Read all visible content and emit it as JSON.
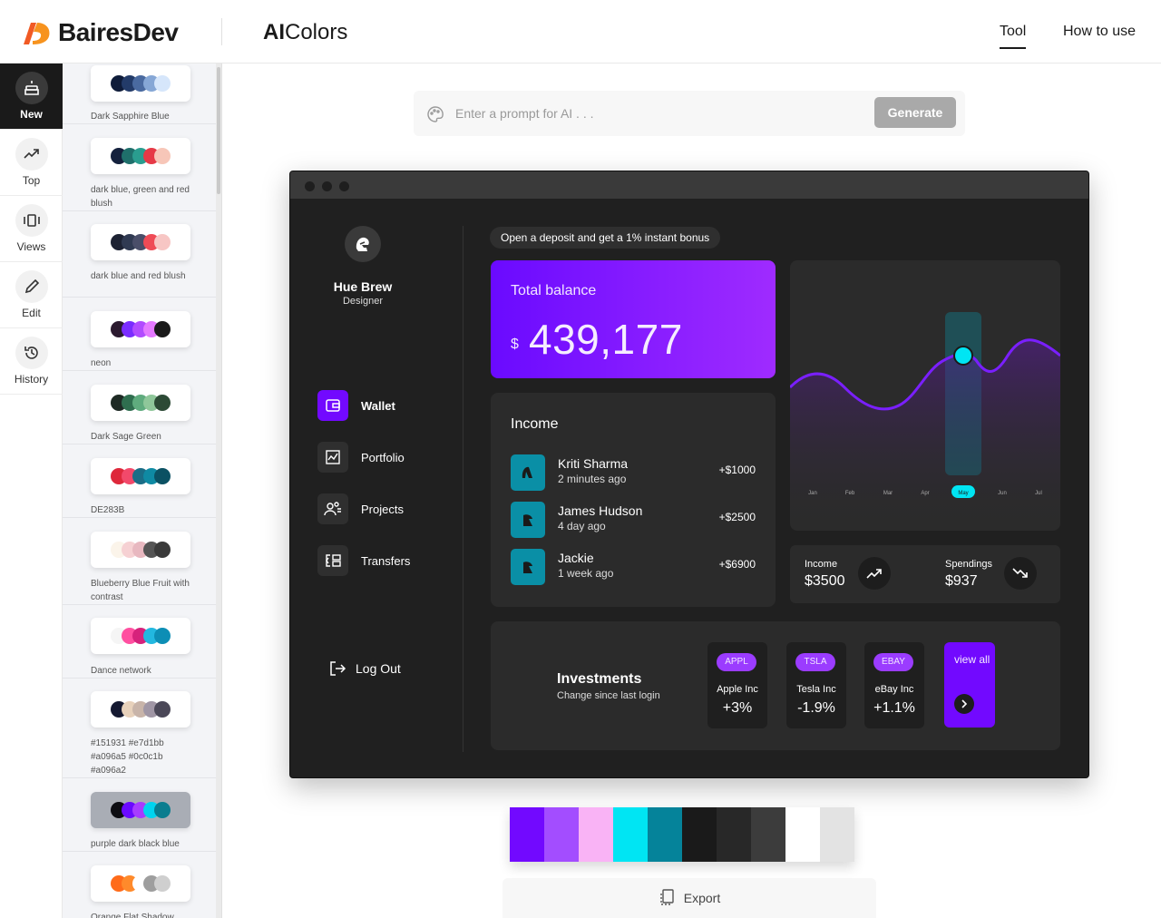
{
  "header": {
    "brand": "BairesDev",
    "app_name_bold": "AI",
    "app_name_rest": "Colors",
    "nav": [
      {
        "label": "Tool"
      },
      {
        "label": "How to use"
      }
    ]
  },
  "rail": [
    {
      "label": "New",
      "icon": "cake-icon"
    },
    {
      "label": "Top",
      "icon": "trending-up-icon"
    },
    {
      "label": "Views",
      "icon": "carousel-icon"
    },
    {
      "label": "Edit",
      "icon": "pencil-icon"
    },
    {
      "label": "History",
      "icon": "history-icon"
    }
  ],
  "palettes": [
    {
      "name": "Dark Sapphire Blue",
      "colors": [
        "#0f1c3a",
        "#233b69",
        "#4a6aa0",
        "#86a7d6",
        "#d6e6fb"
      ]
    },
    {
      "name": "dark blue, green and red blush",
      "colors": [
        "#14213d",
        "#1f6f6b",
        "#2a9d8f",
        "#e63946",
        "#f7c6b8"
      ]
    },
    {
      "name": "dark blue and red blush",
      "colors": [
        "#1d2233",
        "#303a52",
        "#4a4e69",
        "#ef4b56",
        "#f7c6c4"
      ]
    },
    {
      "name": "neon",
      "colors": [
        "#2b1a2f",
        "#7a2cff",
        "#b14bff",
        "#e479ff",
        "#1a1a1a"
      ]
    },
    {
      "name": "Dark Sage Green",
      "colors": [
        "#1e2a25",
        "#2f6e4f",
        "#5fab7e",
        "#8fc79a",
        "#2c4a35"
      ]
    },
    {
      "name": "DE283B",
      "colors": [
        "#de283b",
        "#f2496a",
        "#1a6d86",
        "#0f8aa3",
        "#0b5163"
      ]
    },
    {
      "name": "Blueberry Blue Fruit with contrast",
      "colors": [
        "#fbf4ea",
        "#f6d1d3",
        "#e8b8c0",
        "#555555",
        "#3a3a3a"
      ]
    },
    {
      "name": "Dance network",
      "colors": [
        "#f5f5f5",
        "#ff4fa0",
        "#d6227c",
        "#22b8e0",
        "#0d8eb5"
      ]
    },
    {
      "name": "#151931 #e7d1bb #a096a5 #0c0c1b #a096a2",
      "colors": [
        "#151931",
        "#e7d1bb",
        "#c8b4a9",
        "#a096a5",
        "#4b4858"
      ]
    },
    {
      "name": "purple dark black blue",
      "colors": [
        "#0d0d12",
        "#6a0aff",
        "#a73cff",
        "#00d4ef",
        "#0a7d8f"
      ]
    },
    {
      "name": "Orange Flat Shadow",
      "colors": [
        "#ff6b1a",
        "#ff8a2b",
        "#ffffff",
        "#9e9e9e",
        "#cfcfcf"
      ]
    }
  ],
  "prompt": {
    "placeholder": "Enter a prompt for AI . . .",
    "button": "Generate"
  },
  "preview": {
    "user": {
      "name": "Hue Brew",
      "role": "Designer"
    },
    "menu": [
      {
        "label": "Wallet",
        "icon": "wallet-icon"
      },
      {
        "label": "Portfolio",
        "icon": "chart-icon"
      },
      {
        "label": "Projects",
        "icon": "people-icon"
      },
      {
        "label": "Transfers",
        "icon": "transfer-icon"
      }
    ],
    "logout": "Log Out",
    "promo": "Open a deposit and get a 1% instant bonus",
    "balance": {
      "title": "Total balance",
      "currency": "$",
      "amount": "439,177"
    },
    "income": {
      "title": "Income",
      "rows": [
        {
          "name": "Kriti Sharma",
          "time": "2 minutes ago",
          "amount": "+$1000"
        },
        {
          "name": "James Hudson",
          "time": "4 day ago",
          "amount": "+$2500"
        },
        {
          "name": "Jackie",
          "time": "1 week ago",
          "amount": "+$6900"
        }
      ]
    },
    "chart_months": [
      "Jan",
      "Feb",
      "Mar",
      "Apr",
      "May",
      "Jun",
      "Jul"
    ],
    "chart_selected_month": "May",
    "stats": {
      "income_label": "Income",
      "income_value": "$3500",
      "spend_label": "Spendings",
      "spend_value": "$937"
    },
    "investments": {
      "title": "Investments",
      "subtitle": "Change since last login",
      "stocks": [
        {
          "ticker": "APPL",
          "name": "Apple Inc",
          "change": "+3%"
        },
        {
          "ticker": "TSLA",
          "name": "Tesla Inc",
          "change": "-1.9%"
        },
        {
          "ticker": "EBAY",
          "name": "eBay Inc",
          "change": "+1.1%"
        }
      ],
      "view_all": "view all"
    }
  },
  "swatches": [
    "#7209ff",
    "#a34dff",
    "#f9b3f5",
    "#00e5f3",
    "#05839a",
    "#1a1a1a",
    "#282828",
    "#3c3c3c",
    "#ffffff",
    "#e3e3e3"
  ],
  "export": "Export"
}
